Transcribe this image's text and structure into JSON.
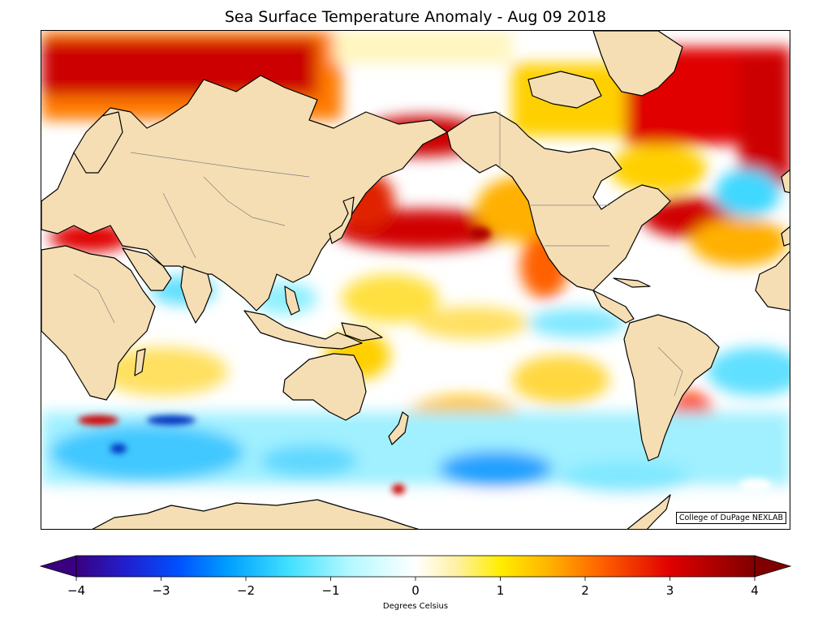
{
  "title": "Sea Surface Temperature Anomaly - Aug 09 2018",
  "credit": "College of DuPage NEXLAB",
  "colorbar": {
    "label": "Degrees Celsius",
    "min": -4,
    "max": 4,
    "ticks": [
      {
        "value": -4,
        "label": "−4"
      },
      {
        "value": -3,
        "label": "−3"
      },
      {
        "value": -2,
        "label": "−2"
      },
      {
        "value": -1,
        "label": "−1"
      },
      {
        "value": 0,
        "label": "0"
      },
      {
        "value": 1,
        "label": "1"
      },
      {
        "value": 2,
        "label": "2"
      },
      {
        "value": 3,
        "label": "3"
      },
      {
        "value": 4,
        "label": "4"
      }
    ],
    "stops": [
      {
        "value": -4,
        "color": "#3a0080"
      },
      {
        "value": -3.4,
        "color": "#2020d0"
      },
      {
        "value": -2.8,
        "color": "#0050ff"
      },
      {
        "value": -2.2,
        "color": "#00a0ff"
      },
      {
        "value": -1.5,
        "color": "#40e0ff"
      },
      {
        "value": -0.8,
        "color": "#b0f8ff"
      },
      {
        "value": 0,
        "color": "#ffffff"
      },
      {
        "value": 0.5,
        "color": "#fff0a0"
      },
      {
        "value": 1,
        "color": "#ffee00"
      },
      {
        "value": 1.6,
        "color": "#ffb000"
      },
      {
        "value": 2.2,
        "color": "#ff6000"
      },
      {
        "value": 3,
        "color": "#e00000"
      },
      {
        "value": 4,
        "color": "#800000"
      }
    ]
  },
  "colors": {
    "land": "#f5deb3",
    "coastline": "#000000",
    "border": "#808080"
  }
}
